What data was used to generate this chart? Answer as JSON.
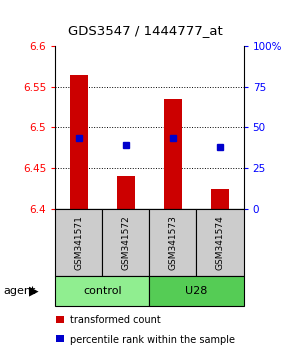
{
  "title": "GDS3547 / 1444777_at",
  "samples": [
    "GSM341571",
    "GSM341572",
    "GSM341573",
    "GSM341574"
  ],
  "bar_values": [
    6.565,
    6.44,
    6.535,
    6.425
  ],
  "bar_base": 6.4,
  "blue_dot_values": [
    6.487,
    6.479,
    6.487,
    6.476
  ],
  "ylim": [
    6.4,
    6.6
  ],
  "yticks_left": [
    6.4,
    6.45,
    6.5,
    6.55,
    6.6
  ],
  "yticks_right_pct": [
    0,
    25,
    50,
    75,
    100
  ],
  "ytick_labels_right": [
    "0",
    "25",
    "50",
    "75",
    "100%"
  ],
  "bar_color": "#cc0000",
  "dot_color": "#0000cc",
  "groups": [
    {
      "label": "control",
      "samples": [
        0,
        1
      ],
      "color": "#90ee90"
    },
    {
      "label": "U28",
      "samples": [
        2,
        3
      ],
      "color": "#55cc55"
    }
  ],
  "legend_items": [
    {
      "color": "#cc0000",
      "label": "transformed count"
    },
    {
      "color": "#0000cc",
      "label": "percentile rank within the sample"
    }
  ],
  "sample_box_color": "#cccccc",
  "figsize": [
    2.9,
    3.54
  ],
  "dpi": 100
}
